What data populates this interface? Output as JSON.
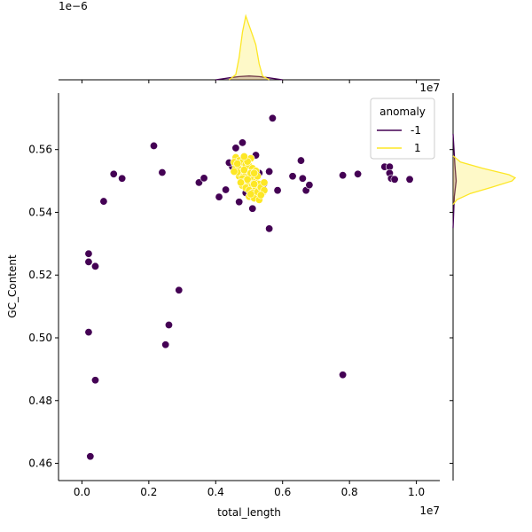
{
  "chart_data": {
    "type": "scatter",
    "kind": "jointplot",
    "xlabel": "total_length",
    "ylabel": "GC_Content",
    "x_offset_text": "1e7",
    "top_marginal_offset_text": "1e−6",
    "xlim": [
      -0.07,
      1.07
    ],
    "ylim": [
      0.4545,
      0.578
    ],
    "x_ticks": [
      0.0,
      0.2,
      0.4,
      0.6,
      0.8,
      1.0
    ],
    "x_tick_labels": [
      "0.0",
      "0.2",
      "0.4",
      "0.6",
      "0.8",
      "1.0"
    ],
    "y_ticks": [
      0.46,
      0.48,
      0.5,
      0.52,
      0.54,
      0.56
    ],
    "y_tick_labels": [
      "0.46",
      "0.48",
      "0.50",
      "0.52",
      "0.54",
      "0.56"
    ],
    "grid": false,
    "legend": {
      "title": "anomaly",
      "placement": "top-right",
      "entries": [
        {
          "label": "-1",
          "color": "#440154"
        },
        {
          "label": "1",
          "color": "#fde725"
        }
      ]
    },
    "series": [
      {
        "name": "-1",
        "color": "#440154",
        "points": [
          [
            0.02,
            0.5268
          ],
          [
            0.02,
            0.5242
          ],
          [
            0.04,
            0.5228
          ],
          [
            0.02,
            0.5018
          ],
          [
            0.04,
            0.4865
          ],
          [
            0.025,
            0.4622
          ],
          [
            0.065,
            0.5435
          ],
          [
            0.095,
            0.5522
          ],
          [
            0.12,
            0.5508
          ],
          [
            0.215,
            0.5612
          ],
          [
            0.24,
            0.5527
          ],
          [
            0.29,
            0.5152
          ],
          [
            0.26,
            0.5041
          ],
          [
            0.25,
            0.4978
          ],
          [
            0.35,
            0.5495
          ],
          [
            0.365,
            0.5509
          ],
          [
            0.41,
            0.5449
          ],
          [
            0.43,
            0.5472
          ],
          [
            0.45,
            0.5545
          ],
          [
            0.46,
            0.5605
          ],
          [
            0.48,
            0.5622
          ],
          [
            0.47,
            0.5433
          ],
          [
            0.52,
            0.5582
          ],
          [
            0.51,
            0.5412
          ],
          [
            0.56,
            0.553
          ],
          [
            0.56,
            0.5348
          ],
          [
            0.57,
            0.57
          ],
          [
            0.585,
            0.547
          ],
          [
            0.545,
            0.5492
          ],
          [
            0.53,
            0.5525
          ],
          [
            0.63,
            0.5515
          ],
          [
            0.655,
            0.5565
          ],
          [
            0.66,
            0.5508
          ],
          [
            0.67,
            0.547
          ],
          [
            0.68,
            0.5487
          ],
          [
            0.78,
            0.5518
          ],
          [
            0.78,
            0.4882
          ],
          [
            0.825,
            0.5522
          ],
          [
            0.905,
            0.5545
          ],
          [
            0.92,
            0.5545
          ],
          [
            0.92,
            0.5525
          ],
          [
            0.925,
            0.5508
          ],
          [
            0.935,
            0.5505
          ],
          [
            0.98,
            0.5505
          ],
          [
            0.44,
            0.5558
          ],
          [
            0.49,
            0.5462
          ],
          [
            0.535,
            0.5455
          ]
        ]
      },
      {
        "name": "1",
        "color": "#fde725",
        "points": [
          [
            0.46,
            0.5575
          ],
          [
            0.47,
            0.5565
          ],
          [
            0.48,
            0.556
          ],
          [
            0.49,
            0.5552
          ],
          [
            0.5,
            0.5548
          ],
          [
            0.51,
            0.554
          ],
          [
            0.52,
            0.5532
          ],
          [
            0.46,
            0.5545
          ],
          [
            0.47,
            0.5538
          ],
          [
            0.48,
            0.553
          ],
          [
            0.49,
            0.5522
          ],
          [
            0.5,
            0.5515
          ],
          [
            0.51,
            0.5505
          ],
          [
            0.52,
            0.5498
          ],
          [
            0.53,
            0.549
          ],
          [
            0.47,
            0.5515
          ],
          [
            0.48,
            0.5508
          ],
          [
            0.49,
            0.55
          ],
          [
            0.5,
            0.5492
          ],
          [
            0.51,
            0.5485
          ],
          [
            0.52,
            0.5478
          ],
          [
            0.53,
            0.547
          ],
          [
            0.48,
            0.5485
          ],
          [
            0.49,
            0.5478
          ],
          [
            0.5,
            0.547
          ],
          [
            0.51,
            0.5462
          ],
          [
            0.52,
            0.5455
          ],
          [
            0.53,
            0.545
          ],
          [
            0.54,
            0.5462
          ],
          [
            0.5,
            0.545
          ],
          [
            0.515,
            0.5445
          ],
          [
            0.53,
            0.544
          ],
          [
            0.455,
            0.556
          ],
          [
            0.465,
            0.5528
          ],
          [
            0.475,
            0.5495
          ],
          [
            0.485,
            0.5535
          ],
          [
            0.495,
            0.5505
          ],
          [
            0.505,
            0.5525
          ],
          [
            0.515,
            0.549
          ],
          [
            0.525,
            0.5465
          ],
          [
            0.535,
            0.548
          ],
          [
            0.545,
            0.547
          ],
          [
            0.545,
            0.5495
          ],
          [
            0.505,
            0.5572
          ],
          [
            0.495,
            0.5562
          ],
          [
            0.485,
            0.5578
          ],
          [
            0.455,
            0.553
          ],
          [
            0.465,
            0.5555
          ],
          [
            0.525,
            0.5515
          ],
          [
            0.515,
            0.5525
          ],
          [
            0.505,
            0.5458
          ],
          [
            0.535,
            0.5455
          ]
        ]
      }
    ],
    "marginal_x": {
      "series": [
        {
          "name": "-1",
          "color": "#440154",
          "x": [
            0.4,
            0.44,
            0.47,
            0.5,
            0.53,
            0.56,
            0.6
          ],
          "density": [
            0.0,
            0.03,
            0.05,
            0.06,
            0.05,
            0.03,
            0.0
          ]
        },
        {
          "name": "1",
          "color": "#fde725",
          "x": [
            0.44,
            0.46,
            0.47,
            0.48,
            0.49,
            0.5,
            0.51,
            0.52,
            0.53,
            0.54,
            0.56
          ],
          "density": [
            0.0,
            0.08,
            0.35,
            0.75,
            1.0,
            0.85,
            0.7,
            0.55,
            0.25,
            0.06,
            0.0
          ]
        }
      ]
    },
    "marginal_y": {
      "series": [
        {
          "name": "-1",
          "color": "#440154",
          "y": [
            0.535,
            0.545,
            0.55,
            0.555,
            0.565
          ],
          "density": [
            0.0,
            0.02,
            0.05,
            0.03,
            0.0
          ]
        },
        {
          "name": "1",
          "color": "#fde725",
          "y": [
            0.5425,
            0.544,
            0.546,
            0.548,
            0.55,
            0.551,
            0.552,
            0.554,
            0.556,
            0.558
          ],
          "density": [
            0.0,
            0.06,
            0.28,
            0.62,
            0.95,
            1.0,
            0.9,
            0.48,
            0.12,
            0.0
          ]
        }
      ]
    }
  }
}
